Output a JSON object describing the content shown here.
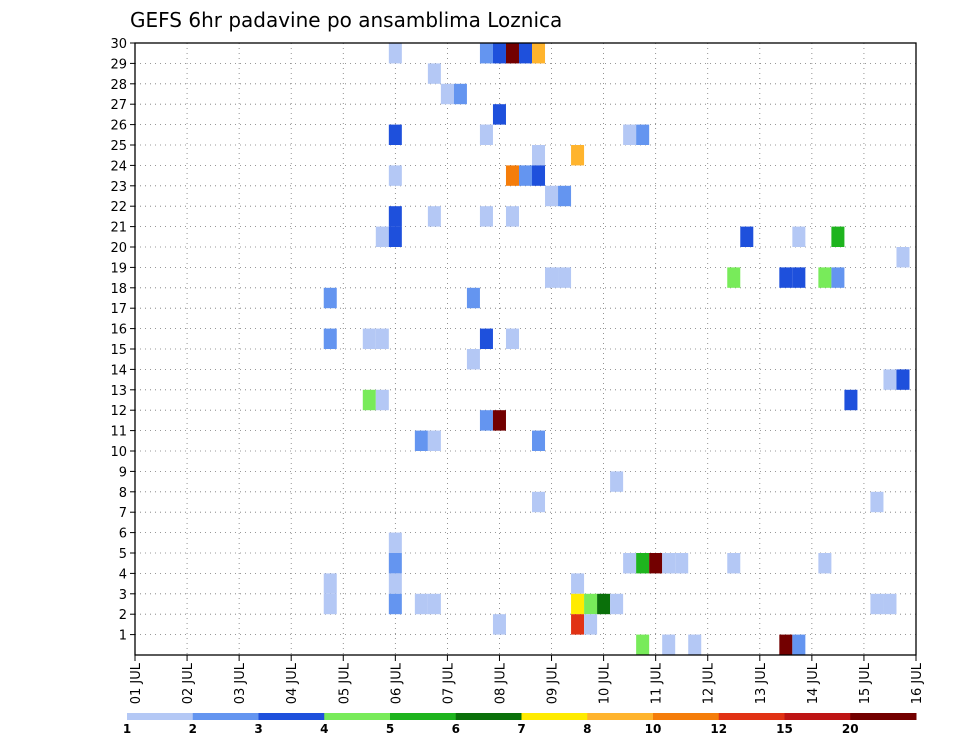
{
  "chart_data": {
    "type": "heatmap",
    "title": "GEFS 6hr padavine po ansamblima Loznica",
    "xlabel": "",
    "ylabel": "",
    "y_ticks": [
      "1",
      "2",
      "3",
      "4",
      "5",
      "6",
      "7",
      "8",
      "9",
      "10",
      "11",
      "12",
      "13",
      "14",
      "15",
      "16",
      "17",
      "18",
      "19",
      "20",
      "21",
      "22",
      "23",
      "24",
      "25",
      "26",
      "27",
      "28",
      "29",
      "30"
    ],
    "x_ticks": [
      "01 JUL",
      "02 JUL",
      "03 JUL",
      "04 JUL",
      "05 JUL",
      "06 JUL",
      "07 JUL",
      "08 JUL",
      "09 JUL",
      "10 JUL",
      "11 JUL",
      "12 JUL",
      "13 JUL",
      "14 JUL",
      "15 JUL",
      "16 JUL"
    ],
    "x_range_days": [
      1,
      16
    ],
    "y_range": [
      0,
      30
    ],
    "grid": true,
    "legend_position": "bottom",
    "legend": {
      "labels": [
        "1",
        "2",
        "3",
        "4",
        "5",
        "6",
        "7",
        "8",
        "10",
        "12",
        "15",
        "20"
      ],
      "colors": [
        "#b4c8f5",
        "#6495f0",
        "#1e50dc",
        "#78eb5a",
        "#1eb41e",
        "#0a700a",
        "#ffeb00",
        "#ffb42d",
        "#f57d0a",
        "#e13214",
        "#be1414",
        "#730000"
      ]
    },
    "cells": [
      {
        "t": 6.0,
        "m": 30,
        "c": 0
      },
      {
        "t": 7.75,
        "m": 30,
        "c": 1
      },
      {
        "t": 8.0,
        "m": 30,
        "c": 2
      },
      {
        "t": 8.25,
        "m": 30,
        "c": 11
      },
      {
        "t": 8.5,
        "m": 30,
        "c": 2
      },
      {
        "t": 8.75,
        "m": 30,
        "c": 7
      },
      {
        "t": 6.75,
        "m": 29,
        "c": 0
      },
      {
        "t": 7.0,
        "m": 28,
        "c": 0
      },
      {
        "t": 7.25,
        "m": 28,
        "c": 1
      },
      {
        "t": 8.0,
        "m": 27,
        "c": 2
      },
      {
        "t": 6.0,
        "m": 26,
        "c": 2
      },
      {
        "t": 7.75,
        "m": 26,
        "c": 0
      },
      {
        "t": 10.5,
        "m": 26,
        "c": 0
      },
      {
        "t": 10.75,
        "m": 26,
        "c": 1
      },
      {
        "t": 8.75,
        "m": 25,
        "c": 0
      },
      {
        "t": 9.5,
        "m": 25,
        "c": 7
      },
      {
        "t": 6.0,
        "m": 24,
        "c": 0
      },
      {
        "t": 8.25,
        "m": 24,
        "c": 8
      },
      {
        "t": 8.5,
        "m": 24,
        "c": 1
      },
      {
        "t": 8.75,
        "m": 24,
        "c": 2
      },
      {
        "t": 9.0,
        "m": 23,
        "c": 0
      },
      {
        "t": 9.25,
        "m": 23,
        "c": 1
      },
      {
        "t": 6.0,
        "m": 22,
        "c": 2
      },
      {
        "t": 6.75,
        "m": 22,
        "c": 0
      },
      {
        "t": 7.75,
        "m": 22,
        "c": 0
      },
      {
        "t": 8.25,
        "m": 22,
        "c": 0
      },
      {
        "t": 5.75,
        "m": 21,
        "c": 0
      },
      {
        "t": 6.0,
        "m": 21,
        "c": 2
      },
      {
        "t": 12.75,
        "m": 21,
        "c": 2
      },
      {
        "t": 13.75,
        "m": 21,
        "c": 0
      },
      {
        "t": 14.5,
        "m": 21,
        "c": 4
      },
      {
        "t": 15.75,
        "m": 20,
        "c": 0
      },
      {
        "t": 9.0,
        "m": 19,
        "c": 0
      },
      {
        "t": 9.25,
        "m": 19,
        "c": 0
      },
      {
        "t": 12.5,
        "m": 19,
        "c": 3
      },
      {
        "t": 13.5,
        "m": 19,
        "c": 2
      },
      {
        "t": 13.75,
        "m": 19,
        "c": 2
      },
      {
        "t": 14.25,
        "m": 19,
        "c": 3
      },
      {
        "t": 14.5,
        "m": 19,
        "c": 1
      },
      {
        "t": 4.75,
        "m": 18,
        "c": 1
      },
      {
        "t": 7.5,
        "m": 18,
        "c": 1
      },
      {
        "t": 4.75,
        "m": 16,
        "c": 1
      },
      {
        "t": 5.5,
        "m": 16,
        "c": 0
      },
      {
        "t": 5.75,
        "m": 16,
        "c": 0
      },
      {
        "t": 7.75,
        "m": 16,
        "c": 2
      },
      {
        "t": 8.25,
        "m": 16,
        "c": 0
      },
      {
        "t": 7.5,
        "m": 15,
        "c": 0
      },
      {
        "t": 15.5,
        "m": 14,
        "c": 0
      },
      {
        "t": 15.75,
        "m": 14,
        "c": 2
      },
      {
        "t": 5.5,
        "m": 13,
        "c": 3
      },
      {
        "t": 5.75,
        "m": 13,
        "c": 0
      },
      {
        "t": 14.75,
        "m": 13,
        "c": 2
      },
      {
        "t": 7.75,
        "m": 12,
        "c": 1
      },
      {
        "t": 8.0,
        "m": 12,
        "c": 11
      },
      {
        "t": 6.5,
        "m": 11,
        "c": 1
      },
      {
        "t": 6.75,
        "m": 11,
        "c": 0
      },
      {
        "t": 8.75,
        "m": 11,
        "c": 1
      },
      {
        "t": 10.25,
        "m": 9,
        "c": 0
      },
      {
        "t": 8.75,
        "m": 8,
        "c": 0
      },
      {
        "t": 15.25,
        "m": 8,
        "c": 0
      },
      {
        "t": 6.0,
        "m": 6,
        "c": 0
      },
      {
        "t": 6.0,
        "m": 5,
        "c": 1
      },
      {
        "t": 10.5,
        "m": 5,
        "c": 0
      },
      {
        "t": 10.75,
        "m": 5,
        "c": 4
      },
      {
        "t": 11.0,
        "m": 5,
        "c": 11
      },
      {
        "t": 11.25,
        "m": 5,
        "c": 0
      },
      {
        "t": 11.5,
        "m": 5,
        "c": 0
      },
      {
        "t": 12.5,
        "m": 5,
        "c": 0
      },
      {
        "t": 14.25,
        "m": 5,
        "c": 0
      },
      {
        "t": 4.75,
        "m": 4,
        "c": 0
      },
      {
        "t": 6.0,
        "m": 4,
        "c": 0
      },
      {
        "t": 9.5,
        "m": 4,
        "c": 0
      },
      {
        "t": 4.75,
        "m": 3,
        "c": 0
      },
      {
        "t": 6.0,
        "m": 3,
        "c": 1
      },
      {
        "t": 6.5,
        "m": 3,
        "c": 0
      },
      {
        "t": 6.75,
        "m": 3,
        "c": 0
      },
      {
        "t": 9.5,
        "m": 3,
        "c": 6
      },
      {
        "t": 9.75,
        "m": 3,
        "c": 3
      },
      {
        "t": 10.0,
        "m": 3,
        "c": 5
      },
      {
        "t": 10.25,
        "m": 3,
        "c": 0
      },
      {
        "t": 15.25,
        "m": 3,
        "c": 0
      },
      {
        "t": 15.5,
        "m": 3,
        "c": 0
      },
      {
        "t": 8.0,
        "m": 2,
        "c": 0
      },
      {
        "t": 9.5,
        "m": 2,
        "c": 9
      },
      {
        "t": 9.75,
        "m": 2,
        "c": 0
      },
      {
        "t": 10.75,
        "m": 1,
        "c": 3
      },
      {
        "t": 11.25,
        "m": 1,
        "c": 0
      },
      {
        "t": 11.75,
        "m": 1,
        "c": 0
      },
      {
        "t": 13.5,
        "m": 1,
        "c": 11
      },
      {
        "t": 13.75,
        "m": 1,
        "c": 1
      }
    ]
  }
}
